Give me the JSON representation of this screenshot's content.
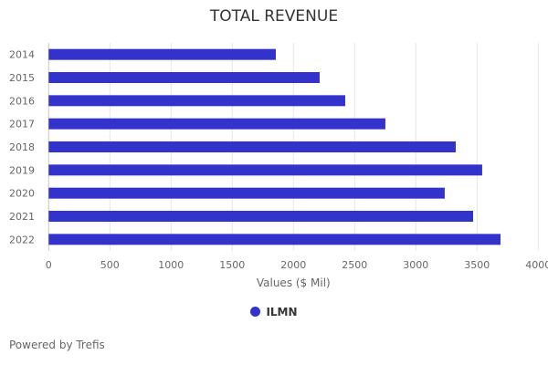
{
  "chart_data": {
    "type": "bar",
    "orientation": "horizontal",
    "title": "TOTAL REVENUE",
    "xlabel": "Values ($ Mil)",
    "ylabel": "",
    "categories": [
      "2014",
      "2015",
      "2016",
      "2017",
      "2018",
      "2019",
      "2020",
      "2021",
      "2022"
    ],
    "series": [
      {
        "name": "ILMN",
        "values": [
          1856,
          2214,
          2423,
          2751,
          3326,
          3542,
          3236,
          3468,
          3692
        ]
      }
    ],
    "xlim": [
      0,
      4000
    ],
    "xticks": [
      "0",
      "500",
      "1000",
      "1500",
      "2000",
      "2500",
      "3000",
      "3500",
      "4000"
    ],
    "grid": true,
    "legend": "bottom-center",
    "colors": {
      "bar": "#3333cc",
      "grid": "#e6e6e6"
    }
  },
  "footer": {
    "credit": "Powered by Trefis"
  }
}
